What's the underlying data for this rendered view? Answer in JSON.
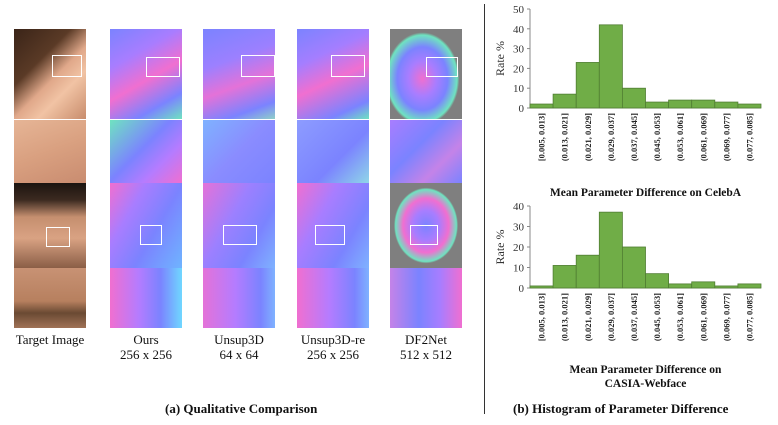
{
  "figure": {
    "left_caption": "(a) Qualitative Comparison",
    "right_caption": "(b) Histogram of Parameter Difference"
  },
  "columns": [
    {
      "name": "Target Image",
      "res": ""
    },
    {
      "name": "Ours",
      "res": "256 x 256"
    },
    {
      "name": "Unsup3D",
      "res": "64 x 64"
    },
    {
      "name": "Unsup3D-re",
      "res": "256 x 256"
    },
    {
      "name": "DF2Net",
      "res": "512 x 512"
    }
  ],
  "colors": {
    "bar_fill": "#70ad47",
    "bar_stroke": "#507e32",
    "normal_map_blue": "#7b83ff",
    "normal_map_pink": "#f06fd0",
    "normal_map_green": "#6fe3c0",
    "background_gray": "#7f7f7f"
  },
  "chart_data": [
    {
      "type": "bar",
      "title": "Mean Parameter Difference on CelebA",
      "xlabel": "",
      "ylabel": "Rate %",
      "ylim": [
        0,
        50
      ],
      "yticks": [
        0,
        10,
        20,
        30,
        40,
        50
      ],
      "categories": [
        "[0.005, 0.013]",
        "(0.013, 0.021]",
        "(0.021, 0.029]",
        "(0.029, 0.037]",
        "(0.037, 0.045]",
        "(0.045, 0.053]",
        "(0.053, 0.061]",
        "(0.061, 0.069]",
        "(0.069, 0.077]",
        "(0.077, 0.085]"
      ],
      "values": [
        2,
        7,
        23,
        42,
        10,
        3,
        4,
        4,
        3,
        2
      ],
      "grid": false
    },
    {
      "type": "bar",
      "title": "Mean Parameter Difference on CASIA-Webface",
      "xlabel": "",
      "ylabel": "Rate %",
      "ylim": [
        0,
        40
      ],
      "yticks": [
        0,
        10,
        20,
        30,
        40
      ],
      "categories": [
        "[0.005, 0.013]",
        "(0.013, 0.021]",
        "(0.021, 0.029]",
        "(0.029, 0.037]",
        "(0.037, 0.045]",
        "(0.045, 0.053]",
        "(0.053, 0.061]",
        "(0.061, 0.069]",
        "(0.069, 0.077]",
        "(0.077, 0.085]"
      ],
      "values": [
        1,
        11,
        16,
        37,
        20,
        7,
        2,
        3,
        1,
        2
      ],
      "grid": false
    }
  ]
}
